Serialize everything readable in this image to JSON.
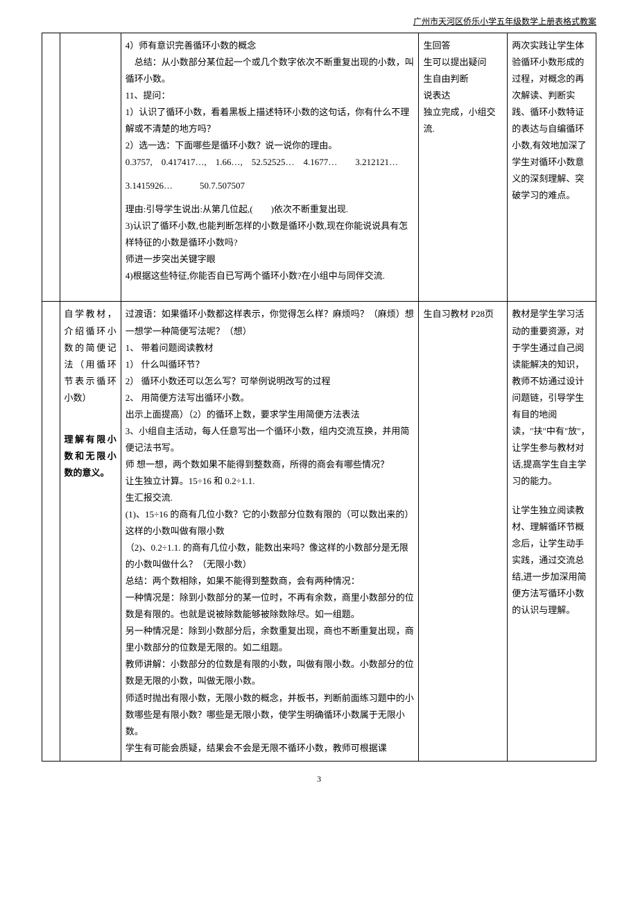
{
  "header": "广州市天河区侨乐小学五年级数学上册表格式教案",
  "pageNumber": "3",
  "table": {
    "row1": {
      "col1": "",
      "col2": [
        "4）师有意识完善循环小数的概念",
        "　总结：从小数部分某位起一个或几个数字依次不断重复出现的小数，叫循环小数。",
        "11、提问：",
        "1）认识了循环小数，看着黑板上描述特环小数的这句话，你有什么不理解或不清楚的地方吗？",
        "2）选一选：下面哪些是循环小数？说一说你的理由。",
        "0.3757,　0.417417…,　1.66…,　52.52525…　4.1677…　　3.212121…",
        "3.1415926…　　　50.7.507507",
        "理由:引导学生说出:从第几位起,(　　)依次不断重复出现.",
        "3)认识了循环小数,也能判断怎样的小数是循环小数,现在你能说说具有怎样特征的小数是循环小数吗?",
        "师进一步突出关键字眼",
        "4)根据这些特征,你能否自已写两个循环小数?在小组中与同伴交流."
      ],
      "col3": [
        "生回答",
        "",
        "",
        "",
        "",
        "生可以提出疑问",
        "",
        "",
        "",
        "",
        "生自由判断",
        "",
        "",
        "",
        "说表达",
        "",
        "",
        "独立完成，小组交流."
      ],
      "col4": [
        "两次实践让学生体验循环小数形成的过程，对概念的再次解读、判断实践、循环小数特证的表达与自编循环小数,有效地加深了学生对循环小数意义的深刻理解、突破学习的难点。"
      ]
    },
    "row2": {
      "col1a": "自学教材，介绍循环小数的简便记法（用循环节表示循环小数）",
      "col1b_bold": "理解有限小数和无限小数的意义。",
      "col2": [
        "过渡语：如果循环小数都这样表示，你觉得怎么样？麻烦吗？（麻烦）想一想学一种简便写法呢？（想）",
        "1、 带着问题阅读教材",
        "1） 什么叫循环节？",
        "2） 循环小数还可以怎么写？可举例说明改写的过程",
        "2、 用简便方法写出循环小数。",
        "出示上面提高）（2）的循环上数，要求学生用简便方法表法",
        "3、小组自主活动，每人任意写出一个循环小数，组内交流互换，并用简便记法书写。",
        "",
        "师 想一想，两个数如果不能得到整数商，所得的商会有哪些情况？",
        "让生独立计算。15÷16 和 0.2÷1.1.",
        "生汇报交流.",
        "(1)、15÷16 的商有几位小数？它的小数部分位数有限的（可以数出来的）这样的小数叫做有限小数",
        "（2)、0.2÷1.1. 的商有几位小数，能数出来吗？像这样的小数部分是无限的小数叫做什么？（无限小数）",
        "总结：两个数相除，如果不能得到整数商，会有两种情况：",
        "一种情况是：除到小数部分的某一位时，不再有余数，商里小数部分的位数是有限的。也就是说被除数能够被除数除尽。如一组题。",
        "另一种情况是：除到小数部分后，余数重复出现，商也不断重复出现，商里小数部分的位数是无限的。如二组题。",
        "教师讲解：小数部分的位数是有限的小数，叫做有限小数。小数部分的位数是无限的小数，叫做无限小数。",
        "师适时抛出有限小数，无限小数的概念，并板书，判断前面练习题中的小数哪些是有限小数？哪些是无限小数，使学生明确循环小数属于无限小数。",
        "学生有可能会质疑，结果会不会是无限不循环小数，教师可根据课"
      ],
      "col3": [
        "生自习教材 P28页"
      ],
      "col4a": [
        "教材是学生学习活动的重要资源，对于学生通过自己阅读能解决的知识，教师不妨通过设计问题链，引导学生有目的地阅读，\"扶\"中有\"放\"，让学生参与教材对话,提高学生自主学习的能力。"
      ],
      "col4b": [
        "让学生独立阅读教材、理解循环节概念后，让学生动手实践，通过交流总结,进一步加深用简便方法写循环小数的认识与理解。"
      ]
    }
  }
}
